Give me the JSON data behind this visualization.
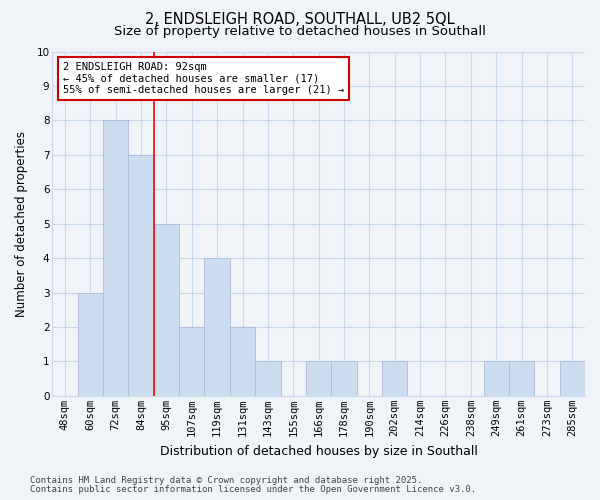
{
  "title1": "2, ENDSLEIGH ROAD, SOUTHALL, UB2 5QL",
  "title2": "Size of property relative to detached houses in Southall",
  "xlabel": "Distribution of detached houses by size in Southall",
  "ylabel": "Number of detached properties",
  "categories": [
    "48sqm",
    "60sqm",
    "72sqm",
    "84sqm",
    "95sqm",
    "107sqm",
    "119sqm",
    "131sqm",
    "143sqm",
    "155sqm",
    "166sqm",
    "178sqm",
    "190sqm",
    "202sqm",
    "214sqm",
    "226sqm",
    "238sqm",
    "249sqm",
    "261sqm",
    "273sqm",
    "285sqm"
  ],
  "values": [
    0,
    3,
    8,
    7,
    5,
    2,
    4,
    2,
    1,
    0,
    1,
    1,
    0,
    1,
    0,
    0,
    0,
    1,
    1,
    0,
    1
  ],
  "bar_color": "#ccddf0",
  "bar_edge_color": "#aabbdd",
  "background_color": "#f0f4f8",
  "plot_bg_color": "#f0f4f8",
  "grid_color": "#c8d8ec",
  "red_line_x": 3.5,
  "annotation_text": "2 ENDSLEIGH ROAD: 92sqm\n← 45% of detached houses are smaller (17)\n55% of semi-detached houses are larger (21) →",
  "annotation_box_facecolor": "#ffffff",
  "annotation_box_edgecolor": "#cc0000",
  "footnote1": "Contains HM Land Registry data © Crown copyright and database right 2025.",
  "footnote2": "Contains public sector information licensed under the Open Government Licence v3.0.",
  "ylim": [
    0,
    10
  ],
  "yticks": [
    0,
    1,
    2,
    3,
    4,
    5,
    6,
    7,
    8,
    9,
    10
  ],
  "title1_fontsize": 10.5,
  "title2_fontsize": 9.5,
  "xlabel_fontsize": 9,
  "ylabel_fontsize": 8.5,
  "tick_fontsize": 7.5,
  "annotation_fontsize": 7.5,
  "footnote_fontsize": 6.5
}
